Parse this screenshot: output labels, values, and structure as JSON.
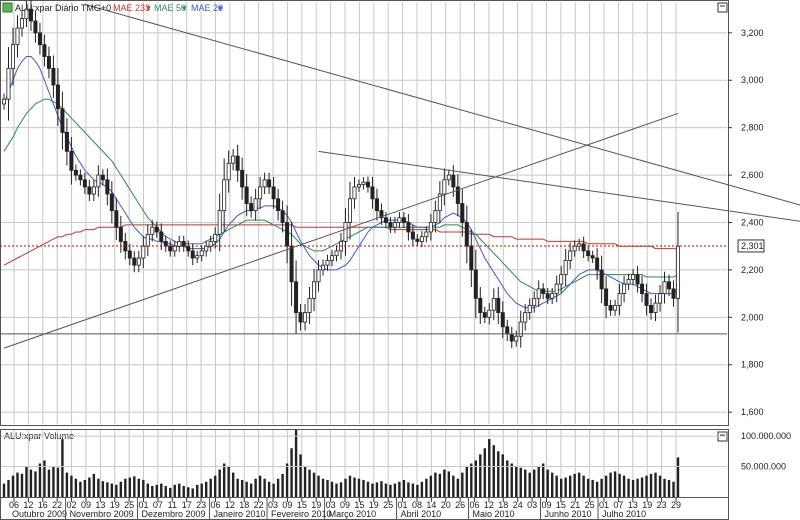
{
  "header": {
    "symbol_label": "ALU:xpar Diário TMG+0",
    "indicators": [
      {
        "label": "MAE 233",
        "color": "#c0392b"
      },
      {
        "label": "MAE 50",
        "color": "#2e8b57"
      },
      {
        "label": "MAE 20",
        "color": "#3a5fcd"
      }
    ]
  },
  "volume_header": {
    "label": "ALU:xpar Volume"
  },
  "price_axis": {
    "ticks": [
      "3,200",
      "3,000",
      "2,800",
      "2,600",
      "2,400",
      "2,200",
      "2,000",
      "1,800",
      "1,600"
    ]
  },
  "volume_axis": {
    "ticks": [
      "100.000.000",
      "50.000.000"
    ]
  },
  "last_price": "2,301",
  "day_ticks": [
    "06",
    "12",
    "16",
    "22",
    "02",
    "09",
    "13",
    "19",
    "25",
    "01",
    "07",
    "11",
    "17",
    "23",
    "06",
    "12",
    "18",
    "22",
    "03",
    "09",
    "15",
    "19",
    "03",
    "09",
    "15",
    "19",
    "25",
    "01",
    "08",
    "14",
    "20",
    "26",
    "06",
    "12",
    "18",
    "24",
    "03",
    "09",
    "15",
    "21",
    "25",
    "01",
    "07",
    "13",
    "19",
    "23",
    "29"
  ],
  "month_labels": [
    "Outubro 2009",
    "Novembro 2009",
    "Dezembro 2009",
    "Janeiro 2010",
    "Fevereiro 2010",
    "Março 2010",
    "Abril 2010",
    "Maio 2010",
    "Junho 2010",
    "Julho 2010"
  ],
  "colors": {
    "grid": "#c8c8c8",
    "candle": "#222222",
    "ma233": "#c0392b",
    "ma50": "#2e8b57",
    "ma20": "#3a5fcd",
    "last_line": "#cc0000"
  },
  "chart_data": {
    "type": "candlestick",
    "title": "ALU:xpar Diário TMG+0",
    "y_range": [
      1.55,
      3.33
    ],
    "closes": [
      2.92,
      3.05,
      3.15,
      3.22,
      3.26,
      3.3,
      3.25,
      3.2,
      3.15,
      3.1,
      3.05,
      2.98,
      2.88,
      2.78,
      2.7,
      2.62,
      2.6,
      2.58,
      2.55,
      2.52,
      2.55,
      2.6,
      2.58,
      2.52,
      2.45,
      2.38,
      2.32,
      2.28,
      2.25,
      2.22,
      2.25,
      2.3,
      2.35,
      2.38,
      2.36,
      2.32,
      2.3,
      2.28,
      2.3,
      2.32,
      2.3,
      2.28,
      2.25,
      2.26,
      2.28,
      2.3,
      2.32,
      2.35,
      2.45,
      2.58,
      2.65,
      2.68,
      2.62,
      2.55,
      2.48,
      2.45,
      2.5,
      2.55,
      2.58,
      2.55,
      2.5,
      2.45,
      2.4,
      2.3,
      2.15,
      2.02,
      1.98,
      2.02,
      2.08,
      2.15,
      2.2,
      2.22,
      2.24,
      2.26,
      2.28,
      2.32,
      2.4,
      2.5,
      2.55,
      2.56,
      2.57,
      2.55,
      2.5,
      2.45,
      2.42,
      2.4,
      2.38,
      2.4,
      2.42,
      2.4,
      2.36,
      2.33,
      2.32,
      2.34,
      2.36,
      2.4,
      2.45,
      2.52,
      2.58,
      2.6,
      2.55,
      2.48,
      2.4,
      2.3,
      2.2,
      2.08,
      2.02,
      2.0,
      2.03,
      2.08,
      2.02,
      1.96,
      1.93,
      1.9,
      1.92,
      1.98,
      2.02,
      2.05,
      2.08,
      2.12,
      2.1,
      2.08,
      2.1,
      2.14,
      2.18,
      2.24,
      2.28,
      2.3,
      2.31,
      2.28,
      2.26,
      2.25,
      2.2,
      2.12,
      2.05,
      2.03,
      2.05,
      2.1,
      2.14,
      2.16,
      2.18,
      2.14,
      2.1,
      2.05,
      2.02,
      2.06,
      2.1,
      2.15,
      2.12,
      2.08,
      2.3
    ],
    "ma20": [
      2.9,
      2.95,
      3.0,
      3.05,
      3.08,
      3.1,
      3.1,
      3.08,
      3.05,
      3.0,
      2.95,
      2.9,
      2.85,
      2.8,
      2.76,
      2.72,
      2.68,
      2.65,
      2.62,
      2.6,
      2.58,
      2.57,
      2.56,
      2.55,
      2.53,
      2.5,
      2.47,
      2.44,
      2.41,
      2.38,
      2.36,
      2.34,
      2.33,
      2.33,
      2.32,
      2.32,
      2.31,
      2.31,
      2.3,
      2.3,
      2.3,
      2.29,
      2.29,
      2.29,
      2.29,
      2.29,
      2.3,
      2.31,
      2.33,
      2.36,
      2.39,
      2.41,
      2.43,
      2.44,
      2.45,
      2.45,
      2.46,
      2.46,
      2.47,
      2.47,
      2.47,
      2.46,
      2.45,
      2.43,
      2.4,
      2.36,
      2.32,
      2.29,
      2.26,
      2.24,
      2.22,
      2.21,
      2.2,
      2.2,
      2.2,
      2.21,
      2.22,
      2.24,
      2.27,
      2.3,
      2.33,
      2.36,
      2.38,
      2.39,
      2.4,
      2.41,
      2.41,
      2.41,
      2.41,
      2.41,
      2.4,
      2.39,
      2.38,
      2.38,
      2.38,
      2.38,
      2.39,
      2.4,
      2.42,
      2.43,
      2.44,
      2.43,
      2.42,
      2.4,
      2.37,
      2.33,
      2.29,
      2.25,
      2.22,
      2.19,
      2.16,
      2.13,
      2.1,
      2.08,
      2.06,
      2.05,
      2.04,
      2.04,
      2.04,
      2.05,
      2.06,
      2.07,
      2.08,
      2.09,
      2.1,
      2.12,
      2.14,
      2.16,
      2.18,
      2.19,
      2.2,
      2.2,
      2.2,
      2.19,
      2.18,
      2.17,
      2.16,
      2.15,
      2.14,
      2.14,
      2.14,
      2.13,
      2.12,
      2.11,
      2.1,
      2.1,
      2.1,
      2.1,
      2.1,
      2.1,
      2.12
    ],
    "ma50": [
      2.7,
      2.73,
      2.76,
      2.8,
      2.83,
      2.86,
      2.88,
      2.9,
      2.91,
      2.92,
      2.92,
      2.91,
      2.9,
      2.88,
      2.86,
      2.84,
      2.82,
      2.8,
      2.78,
      2.76,
      2.74,
      2.72,
      2.7,
      2.68,
      2.66,
      2.63,
      2.6,
      2.57,
      2.54,
      2.51,
      2.48,
      2.45,
      2.42,
      2.4,
      2.38,
      2.36,
      2.34,
      2.33,
      2.32,
      2.31,
      2.31,
      2.31,
      2.31,
      2.31,
      2.31,
      2.32,
      2.33,
      2.34,
      2.35,
      2.36,
      2.37,
      2.38,
      2.39,
      2.4,
      2.41,
      2.41,
      2.41,
      2.41,
      2.41,
      2.4,
      2.39,
      2.38,
      2.37,
      2.36,
      2.35,
      2.33,
      2.31,
      2.3,
      2.29,
      2.28,
      2.28,
      2.28,
      2.29,
      2.3,
      2.31,
      2.32,
      2.33,
      2.34,
      2.35,
      2.36,
      2.37,
      2.38,
      2.38,
      2.38,
      2.38,
      2.38,
      2.38,
      2.38,
      2.38,
      2.38,
      2.38,
      2.38,
      2.38,
      2.38,
      2.38,
      2.38,
      2.38,
      2.38,
      2.39,
      2.39,
      2.39,
      2.39,
      2.38,
      2.37,
      2.36,
      2.35,
      2.33,
      2.31,
      2.29,
      2.27,
      2.25,
      2.23,
      2.21,
      2.19,
      2.17,
      2.15,
      2.14,
      2.13,
      2.12,
      2.11,
      2.11,
      2.11,
      2.11,
      2.11,
      2.12,
      2.13,
      2.14,
      2.15,
      2.16,
      2.17,
      2.18,
      2.18,
      2.18,
      2.18,
      2.18,
      2.18,
      2.18,
      2.18,
      2.18,
      2.18,
      2.18,
      2.18,
      2.18,
      2.17,
      2.17,
      2.17,
      2.17,
      2.17,
      2.17,
      2.17,
      2.18
    ],
    "ma233": [
      2.22,
      2.23,
      2.24,
      2.25,
      2.26,
      2.27,
      2.28,
      2.29,
      2.3,
      2.31,
      2.32,
      2.33,
      2.34,
      2.34,
      2.35,
      2.35,
      2.36,
      2.36,
      2.37,
      2.37,
      2.37,
      2.38,
      2.38,
      2.38,
      2.38,
      2.38,
      2.38,
      2.39,
      2.39,
      2.39,
      2.39,
      2.39,
      2.39,
      2.39,
      2.39,
      2.39,
      2.39,
      2.39,
      2.39,
      2.39,
      2.39,
      2.39,
      2.39,
      2.39,
      2.39,
      2.39,
      2.39,
      2.39,
      2.39,
      2.39,
      2.39,
      2.39,
      2.39,
      2.39,
      2.39,
      2.39,
      2.39,
      2.39,
      2.39,
      2.39,
      2.39,
      2.39,
      2.39,
      2.39,
      2.39,
      2.38,
      2.38,
      2.38,
      2.38,
      2.38,
      2.38,
      2.38,
      2.38,
      2.38,
      2.38,
      2.38,
      2.38,
      2.38,
      2.38,
      2.38,
      2.38,
      2.38,
      2.38,
      2.38,
      2.38,
      2.38,
      2.37,
      2.37,
      2.37,
      2.37,
      2.37,
      2.37,
      2.37,
      2.37,
      2.37,
      2.37,
      2.37,
      2.36,
      2.36,
      2.36,
      2.36,
      2.36,
      2.36,
      2.36,
      2.35,
      2.35,
      2.35,
      2.35,
      2.35,
      2.34,
      2.34,
      2.34,
      2.34,
      2.34,
      2.33,
      2.33,
      2.33,
      2.33,
      2.33,
      2.33,
      2.33,
      2.32,
      2.32,
      2.32,
      2.32,
      2.32,
      2.32,
      2.32,
      2.32,
      2.32,
      2.31,
      2.31,
      2.31,
      2.31,
      2.31,
      2.31,
      2.31,
      2.3,
      2.3,
      2.3,
      2.3,
      2.3,
      2.3,
      2.3,
      2.3,
      2.29,
      2.29,
      2.29,
      2.29,
      2.29,
      2.29
    ],
    "trendlines": [
      {
        "from": [
          0,
          1.87
        ],
        "to": [
          150,
          2.86
        ]
      },
      {
        "from": [
          18,
          3.32
        ],
        "to": [
          255,
          2.06
        ]
      },
      {
        "from": [
          70,
          2.7
        ],
        "to": [
          230,
          2.26
        ]
      }
    ],
    "support_level": 1.93,
    "last_price": 2.301,
    "volume_range": [
      0,
      110000000
    ],
    "volume": [
      22,
      28,
      35,
      40,
      38,
      50,
      45,
      42,
      55,
      60,
      45,
      50,
      48,
      95,
      40,
      35,
      30,
      25,
      28,
      32,
      38,
      30,
      26,
      24,
      22,
      20,
      25,
      30,
      32,
      34,
      30,
      28,
      22,
      18,
      20,
      22,
      18,
      15,
      20,
      22,
      18,
      16,
      14,
      20,
      22,
      25,
      30,
      35,
      45,
      55,
      50,
      40,
      30,
      28,
      25,
      22,
      30,
      35,
      30,
      25,
      22,
      30,
      38,
      55,
      80,
      110,
      70,
      50,
      45,
      40,
      35,
      30,
      28,
      25,
      22,
      24,
      30,
      35,
      32,
      30,
      28,
      25,
      22,
      24,
      26,
      22,
      20,
      22,
      25,
      28,
      24,
      22,
      20,
      25,
      30,
      35,
      40,
      38,
      45,
      42,
      35,
      30,
      40,
      50,
      55,
      60,
      70,
      80,
      95,
      85,
      75,
      70,
      60,
      55,
      50,
      48,
      45,
      40,
      45,
      50,
      55,
      45,
      40,
      35,
      30,
      32,
      35,
      38,
      40,
      35,
      30,
      28,
      25,
      30,
      35,
      40,
      42,
      38,
      35,
      30,
      28,
      30,
      32,
      35,
      38,
      40,
      35,
      30,
      28,
      25,
      65
    ]
  }
}
